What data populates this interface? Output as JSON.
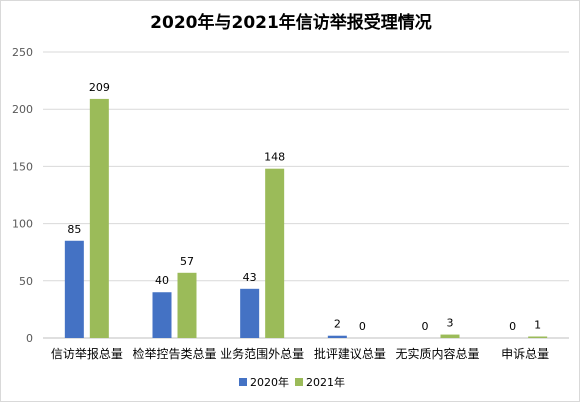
{
  "colors": {
    "s2020": "#4472c4",
    "s2021": "#9bbb59",
    "grid": "#d9d9d9",
    "axis": "#bfbfbf"
  },
  "chart_data": {
    "type": "bar",
    "title": "2020年与2021年信访举报受理情况",
    "categories": [
      "信访举报总量",
      "检举控告类总量",
      "业务范围外总量",
      "批评建议总量",
      "无实质内容总量",
      "申诉总量"
    ],
    "series": [
      {
        "name": "2020年",
        "values": [
          85,
          40,
          43,
          2,
          0,
          0
        ]
      },
      {
        "name": "2021年",
        "values": [
          209,
          57,
          148,
          0,
          3,
          1
        ]
      }
    ],
    "yticks": [
      0,
      50,
      100,
      150,
      200,
      250
    ],
    "ylim": [
      0,
      250
    ],
    "grid": true,
    "legend": "bottom"
  }
}
